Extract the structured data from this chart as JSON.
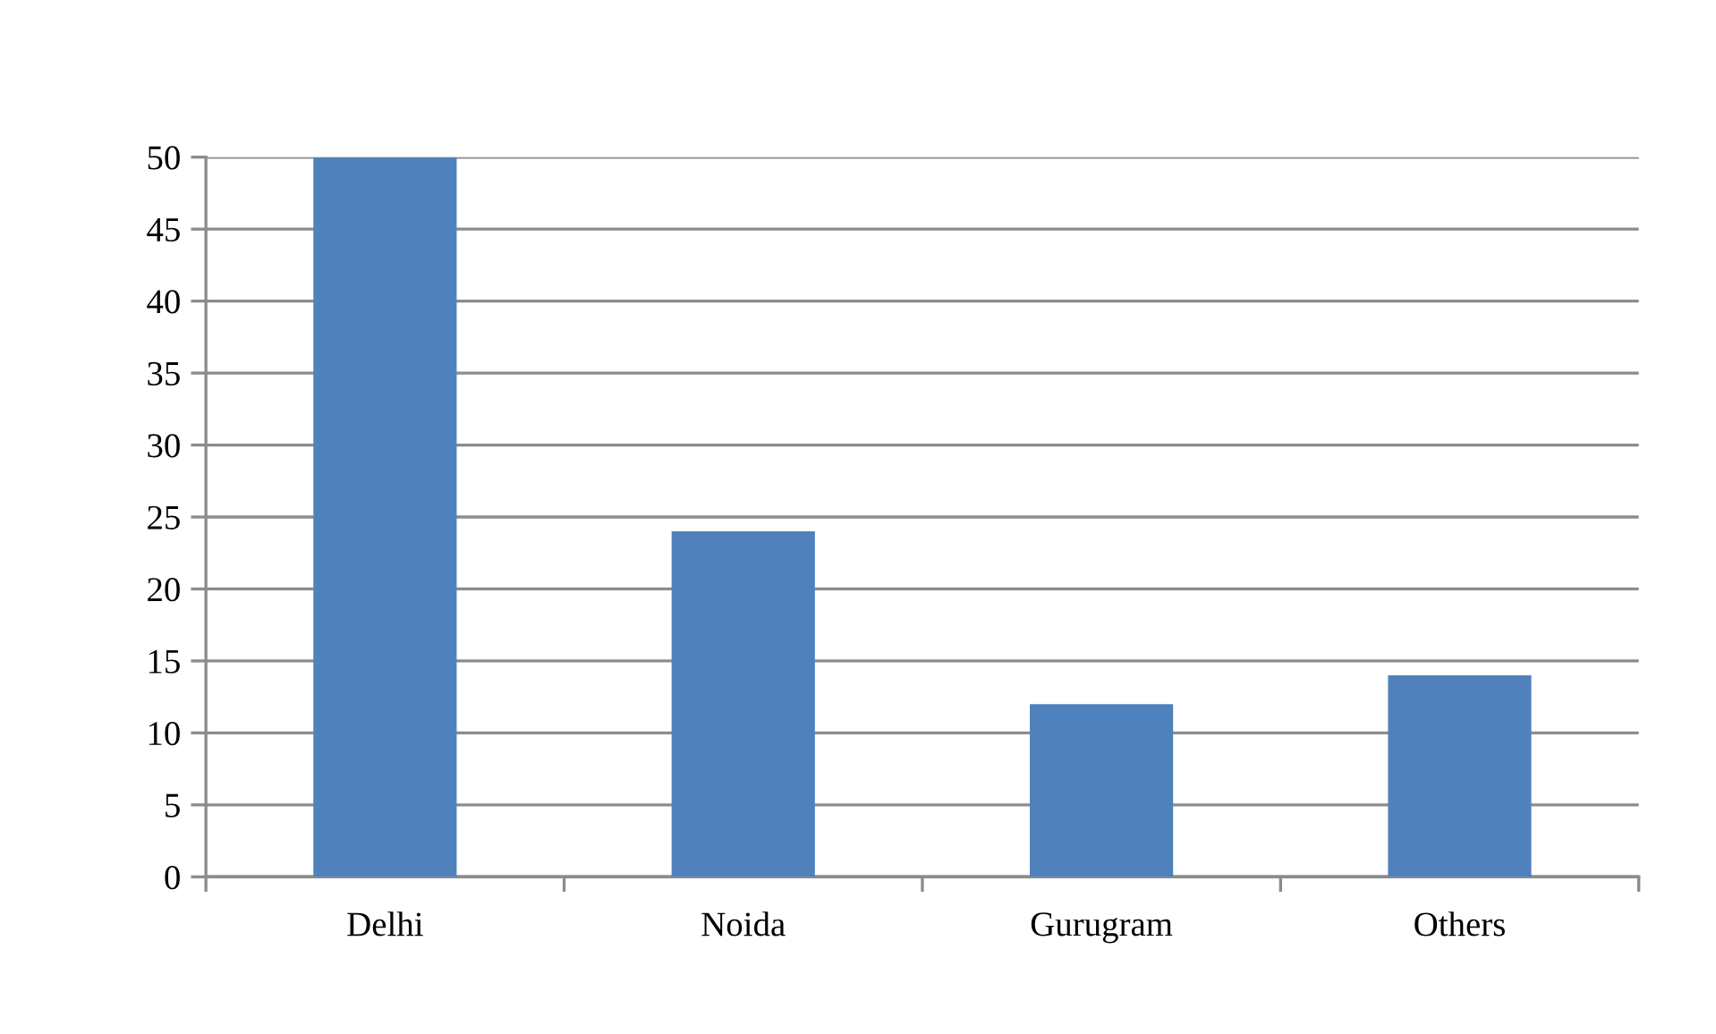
{
  "chart_data": {
    "type": "bar",
    "categories": [
      "Delhi",
      "Noida",
      "Gurugram",
      "Others"
    ],
    "values": [
      50,
      24,
      12,
      14
    ],
    "color": "#4f81bd",
    "ylim": [
      0,
      50
    ],
    "yticks": [
      0,
      5,
      10,
      15,
      20,
      25,
      30,
      35,
      40,
      45,
      50
    ],
    "grid": "y"
  }
}
